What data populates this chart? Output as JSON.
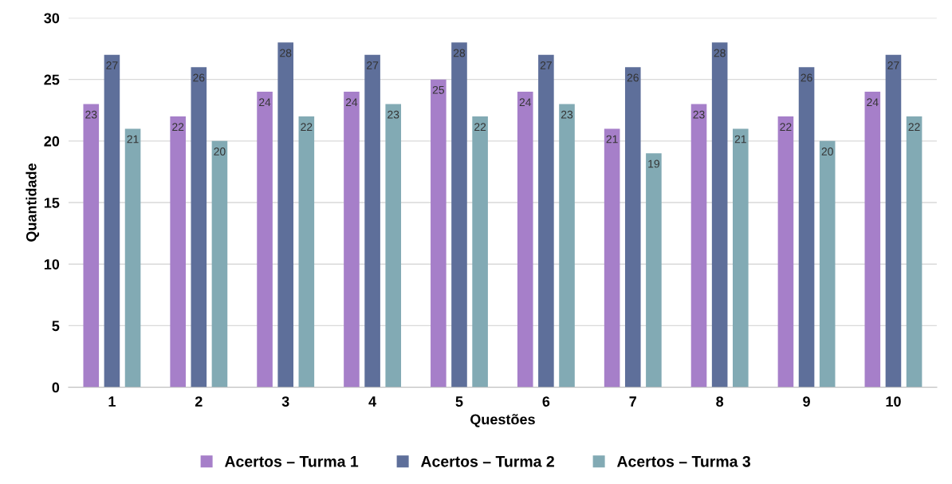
{
  "chart_data": {
    "type": "bar",
    "xlabel": "Questões",
    "ylabel": "Quantidade",
    "categories": [
      "1",
      "2",
      "3",
      "4",
      "5",
      "6",
      "7",
      "8",
      "9",
      "10"
    ],
    "series": [
      {
        "name": "Acertos – Turma 1",
        "color": "#a67fc9",
        "values": [
          23,
          22,
          24,
          24,
          25,
          24,
          21,
          23,
          22,
          24
        ]
      },
      {
        "name": "Acertos – Turma 2",
        "color": "#5e6f9a",
        "values": [
          27,
          26,
          28,
          27,
          28,
          27,
          26,
          28,
          26,
          27
        ]
      },
      {
        "name": "Acertos – Turma 3",
        "color": "#82aab4",
        "values": [
          21,
          20,
          22,
          23,
          22,
          23,
          19,
          21,
          20,
          22
        ]
      }
    ],
    "ylim": [
      0,
      30
    ],
    "yticks": [
      0,
      5,
      10,
      15,
      20,
      25,
      30
    ],
    "grid": "y",
    "legend": "bottom",
    "data_labels": true
  }
}
